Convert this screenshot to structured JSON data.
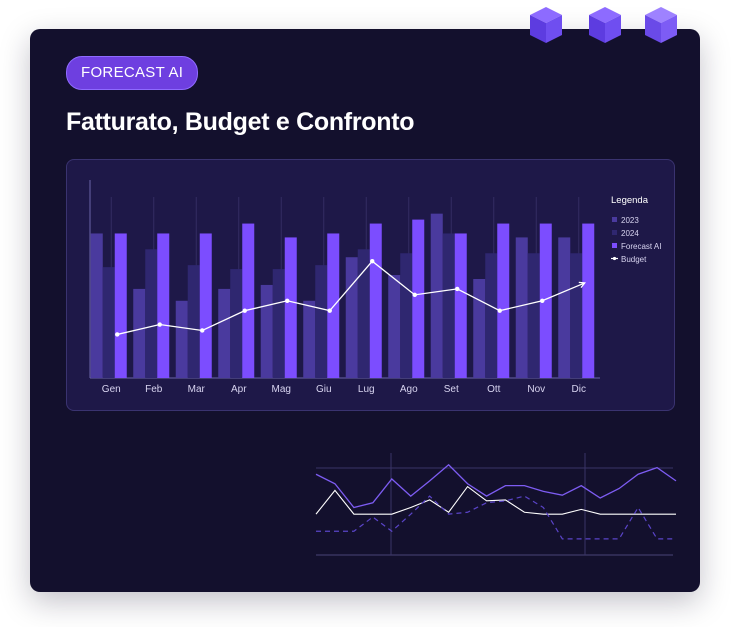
{
  "badge": "FORECAST AI",
  "title": "Fatturato, Budget e Confronto",
  "colors": {
    "card": "#13102d",
    "panel": "#1e1848",
    "series_2023": "#4a3a9e",
    "series_2024": "#2f2770",
    "series_forecast": "#7c4dff",
    "budget_line": "#ffffff"
  },
  "chart_data": [
    {
      "type": "bar",
      "title": "",
      "legend_title": "Legenda",
      "legend_position": "right",
      "categories": [
        "Gen",
        "Feb",
        "Mar",
        "Apr",
        "Mag",
        "Giu",
        "Lug",
        "Ago",
        "Set",
        "Ott",
        "Nov",
        "Dic"
      ],
      "ylim": [
        0,
        100
      ],
      "series": [
        {
          "name": "2023",
          "type": "bar",
          "values": [
            73,
            45,
            39,
            45,
            47,
            39,
            61,
            52,
            83,
            50,
            71,
            71
          ]
        },
        {
          "name": "2024",
          "type": "bar",
          "values": [
            56,
            65,
            57,
            55,
            55,
            57,
            65,
            63,
            73,
            63,
            63,
            63
          ]
        },
        {
          "name": "Forecast AI",
          "type": "bar",
          "values": [
            73,
            73,
            73,
            78,
            71,
            73,
            78,
            80,
            73,
            78,
            78,
            78
          ]
        },
        {
          "name": "Budget",
          "type": "line",
          "values": [
            22,
            27,
            24,
            34,
            39,
            34,
            59,
            42,
            45,
            34,
            39,
            48
          ]
        }
      ]
    },
    {
      "type": "line",
      "title": "",
      "x": [
        0,
        1,
        2,
        3,
        4,
        5,
        6,
        7,
        8,
        9,
        10,
        11,
        12,
        13,
        14,
        15,
        16,
        17,
        18,
        19
      ],
      "ylim": [
        0,
        100
      ],
      "series": [
        {
          "name": "purple",
          "style": "solid",
          "values": [
            85,
            75,
            50,
            55,
            80,
            62,
            78,
            95,
            75,
            62,
            73,
            73,
            67,
            63,
            73,
            60,
            70,
            85,
            92,
            78
          ]
        },
        {
          "name": "white",
          "style": "solid",
          "values": [
            43,
            68,
            43,
            43,
            43,
            50,
            58,
            45,
            72,
            57,
            58,
            45,
            43,
            43,
            48,
            43,
            43,
            43,
            43,
            43
          ]
        },
        {
          "name": "dashed",
          "style": "dashed",
          "values": [
            25,
            25,
            25,
            40,
            25,
            43,
            62,
            43,
            45,
            55,
            57,
            62,
            50,
            17,
            17,
            17,
            17,
            50,
            17,
            17
          ]
        }
      ]
    }
  ]
}
